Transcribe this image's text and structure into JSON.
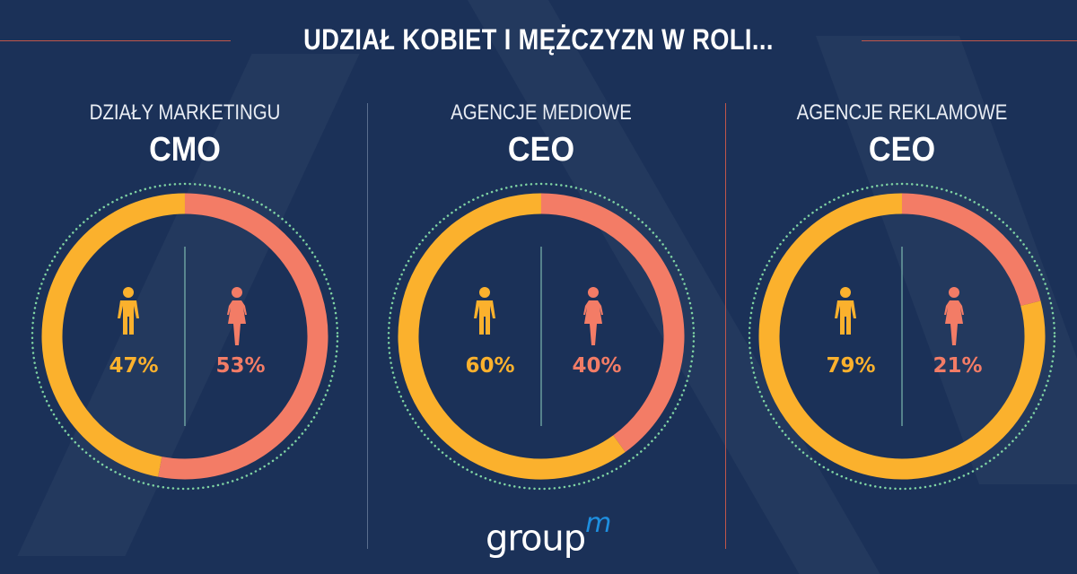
{
  "title": "UDZIAŁ KOBIET I MĘŻCZYZN W ROLI...",
  "colors": {
    "men": "#fbb12d",
    "women": "#f37c66",
    "background": "#1b3158",
    "dots": "#7fd3a3",
    "divider": "#c0564a"
  },
  "chart_data": [
    {
      "type": "pie",
      "subtitle": "DZIAŁY MARKETINGU",
      "title": "CMO",
      "categories": [
        "men-icon",
        "women-icon"
      ],
      "values": [
        47,
        53
      ],
      "labels": [
        "47%",
        "53%"
      ]
    },
    {
      "type": "pie",
      "subtitle": "AGENCJE MEDIOWE",
      "title": "CEO",
      "categories": [
        "men-icon",
        "women-icon"
      ],
      "values": [
        60,
        40
      ],
      "labels": [
        "60%",
        "40%"
      ]
    },
    {
      "type": "pie",
      "subtitle": "AGENCJE REKLAMOWE",
      "title": "CEO",
      "categories": [
        "men-icon",
        "women-icon"
      ],
      "values": [
        79,
        21
      ],
      "labels": [
        "79%",
        "21%"
      ]
    }
  ],
  "logo": {
    "text": "group",
    "sup": "m"
  }
}
